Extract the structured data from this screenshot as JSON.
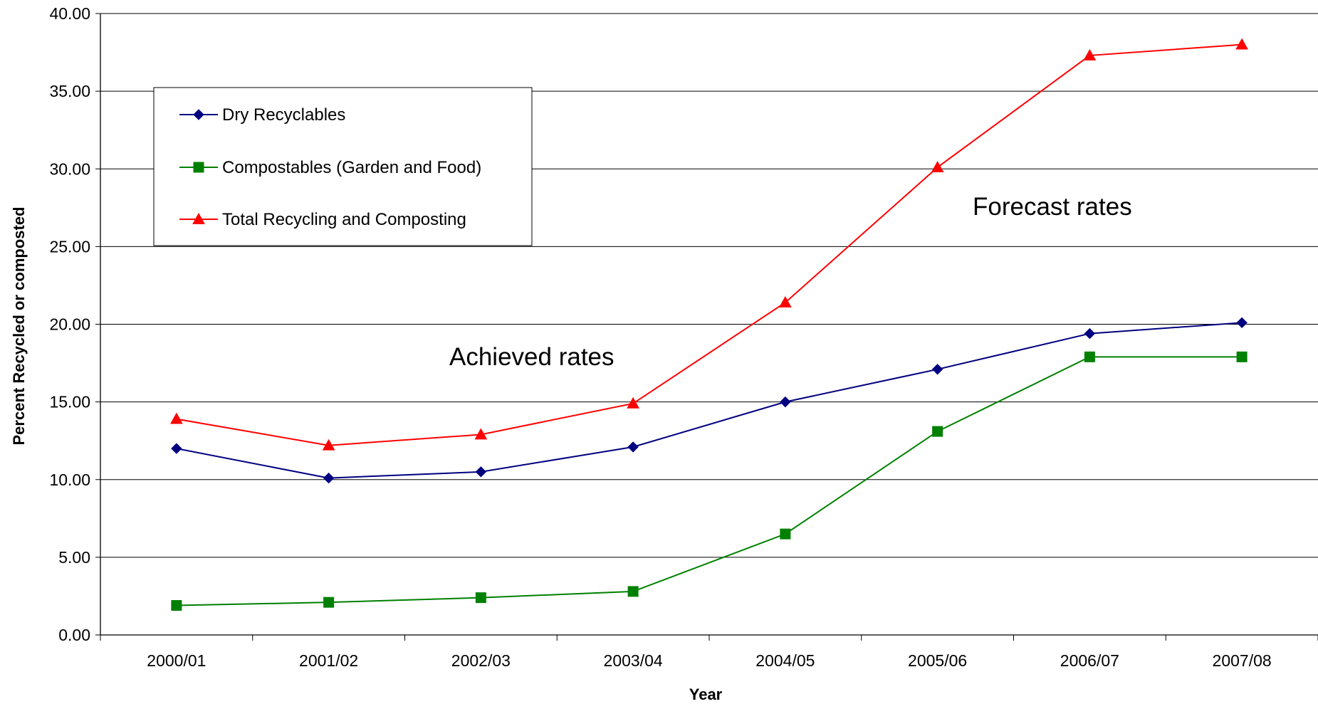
{
  "chart_data": {
    "type": "line",
    "title": "",
    "xlabel": "Year",
    "ylabel": "Percent Recycled or composted",
    "ylim": [
      0,
      40
    ],
    "ytick_step": 5,
    "ytick_labels": [
      "0.00",
      "5.00",
      "10.00",
      "15.00",
      "20.00",
      "25.00",
      "30.00",
      "35.00",
      "40.00"
    ],
    "categories": [
      "2000/01",
      "2001/02",
      "2002/03",
      "2003/04",
      "2004/05",
      "2005/06",
      "2006/07",
      "2007/08"
    ],
    "grid": true,
    "legend_position": "top-left",
    "series": [
      {
        "name": "Dry Recyclables",
        "marker": "diamond",
        "color": "#000080",
        "values": [
          12.0,
          10.1,
          10.5,
          12.1,
          15.0,
          17.1,
          19.4,
          20.1
        ]
      },
      {
        "name": "Compostables (Garden and Food)",
        "marker": "square",
        "color": "#008000",
        "values": [
          1.9,
          2.1,
          2.4,
          2.8,
          6.5,
          13.1,
          17.9,
          17.9
        ]
      },
      {
        "name": "Total Recycling and Composting",
        "marker": "triangle",
        "color": "#ff0000",
        "values": [
          13.9,
          12.2,
          12.9,
          14.9,
          21.4,
          30.1,
          37.3,
          38.0
        ]
      }
    ],
    "annotations": [
      {
        "text": "Achieved rates"
      },
      {
        "text": "Forecast rates"
      }
    ]
  }
}
